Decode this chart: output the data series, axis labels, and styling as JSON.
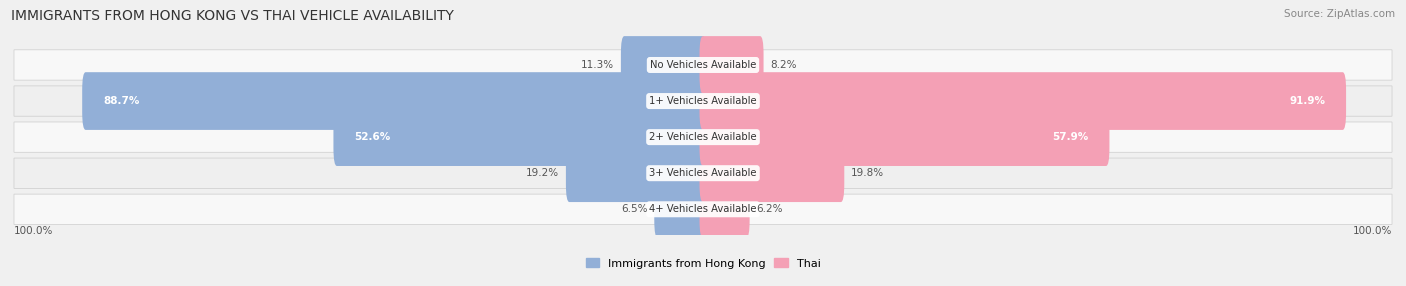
{
  "title": "IMMIGRANTS FROM HONG KONG VS THAI VEHICLE AVAILABILITY",
  "source": "Source: ZipAtlas.com",
  "categories": [
    "No Vehicles Available",
    "1+ Vehicles Available",
    "2+ Vehicles Available",
    "3+ Vehicles Available",
    "4+ Vehicles Available"
  ],
  "hk_values": [
    11.3,
    88.7,
    52.6,
    19.2,
    6.5
  ],
  "thai_values": [
    8.2,
    91.9,
    57.9,
    19.8,
    6.2
  ],
  "hk_color": "#92afd7",
  "thai_color": "#f4a0b5",
  "bg_color": "#f0f0f0",
  "title_color": "#333333",
  "source_color": "#888888",
  "label_dark": "#555555",
  "label_white": "#ffffff",
  "row_colors": [
    "#f8f8f8",
    "#efefef",
    "#f8f8f8",
    "#efefef",
    "#f8f8f8"
  ],
  "max_val": 100.0,
  "white_label_threshold": 30
}
